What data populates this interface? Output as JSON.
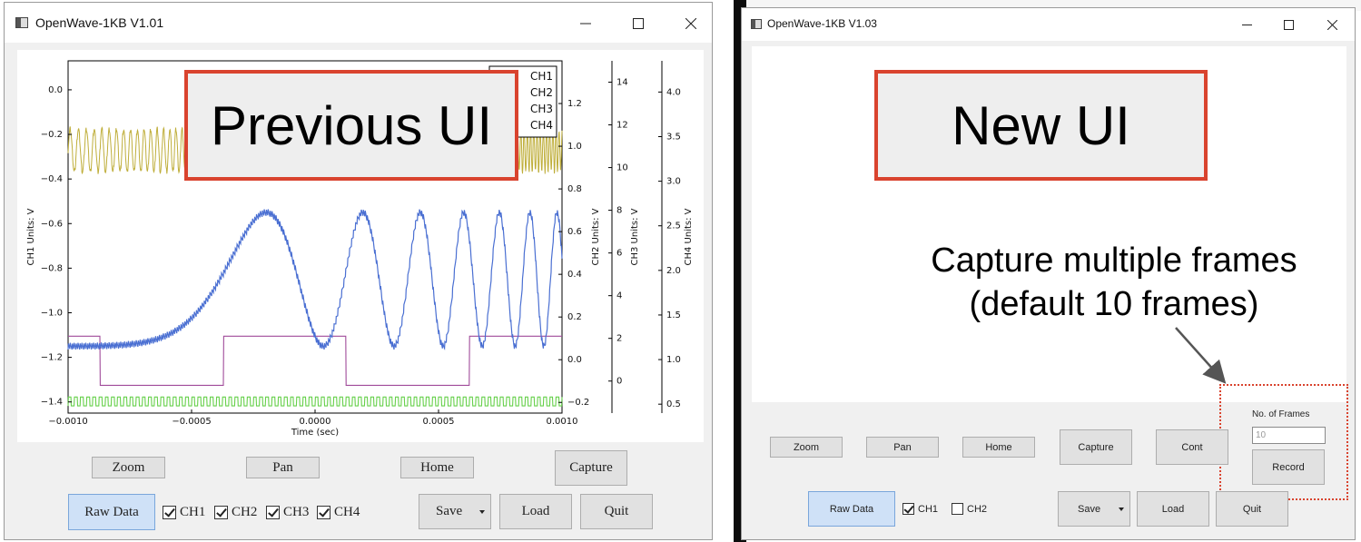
{
  "left_window": {
    "title": "OpenWave-1KB V1.01",
    "callout": "Previous UI",
    "buttons": {
      "zoom": "Zoom",
      "pan": "Pan",
      "home": "Home",
      "capture": "Capture",
      "raw_data": "Raw Data",
      "save": "Save",
      "load": "Load",
      "quit": "Quit"
    },
    "channels": [
      {
        "label": "CH1",
        "checked": true
      },
      {
        "label": "CH2",
        "checked": true
      },
      {
        "label": "CH3",
        "checked": true
      },
      {
        "label": "CH4",
        "checked": true
      }
    ]
  },
  "right_window": {
    "title": "OpenWave-1KB V1.03",
    "callout": "New UI",
    "annotation_line1": "Capture multiple frames",
    "annotation_line2": "(default 10 frames)",
    "buttons": {
      "zoom": "Zoom",
      "pan": "Pan",
      "home": "Home",
      "capture": "Capture",
      "cont": "Cont",
      "record": "Record",
      "raw_data": "Raw Data",
      "save": "Save",
      "load": "Load",
      "quit": "Quit"
    },
    "frames_label": "No. of Frames",
    "frames_placeholder": "10",
    "channels": [
      {
        "label": "CH1",
        "checked": true
      },
      {
        "label": "CH2",
        "checked": false
      }
    ]
  },
  "chart_data": {
    "type": "line",
    "xlabel": "Time (sec)",
    "x_ticks": [
      "−0.0010",
      "−0.0005",
      "0.0000",
      "0.0005",
      "0.0010"
    ],
    "xlim": [
      -0.001,
      0.001
    ],
    "legend": [
      "CH1",
      "CH2",
      "CH3",
      "CH4"
    ],
    "legend_position": "top-right",
    "axes": [
      {
        "name": "CH1 Units: V",
        "side": "left",
        "ticks": [
          "0.0",
          "−0.2",
          "−0.4",
          "−0.6",
          "−0.8",
          "−1.0",
          "−1.2",
          "−1.4"
        ],
        "ylim": [
          -1.45,
          0.13
        ]
      },
      {
        "name": "CH2 Units: V",
        "side": "right",
        "ticks": [
          "1.2",
          "1.0",
          "0.8",
          "0.6",
          "0.4",
          "0.2",
          "0.0",
          "−0.2"
        ],
        "ylim": [
          -0.25,
          1.4
        ]
      },
      {
        "name": "CH3 Units: V",
        "side": "right",
        "ticks": [
          "14",
          "12",
          "10",
          "8",
          "6",
          "4",
          "2",
          "0"
        ],
        "ylim": [
          -1.5,
          15
        ]
      },
      {
        "name": "CH4 Units: V",
        "side": "right",
        "ticks": [
          "4.0",
          "3.5",
          "3.0",
          "2.5",
          "2.0",
          "1.5",
          "1.0",
          "0.5"
        ],
        "ylim": [
          0.4,
          4.35
        ]
      }
    ],
    "series": [
      {
        "name": "CH1",
        "color": "#4a6fd2",
        "shape": "chirp sine, min ≈ −1.15 V, max ≈ −0.52 V, frequency rising with time"
      },
      {
        "name": "CH2",
        "color": "#bfae3a",
        "shape": "high-frequency oscillation between ≈ 0.85 and 1.1 V"
      },
      {
        "name": "CH3",
        "color": "#a04b9a",
        "shape": "square wave with low period, levels ≈ 0.1 V and ≈ 0.75 V"
      },
      {
        "name": "CH4",
        "color": "#66d04a",
        "shape": "fast square wave between ≈ 0.5 and 0.6 V"
      }
    ],
    "colors": {
      "CH1": "#4a6fd2",
      "CH2": "#bfae3a",
      "CH3": "#a04b9a",
      "CH4": "#66d04a"
    }
  },
  "colors": {
    "callout_border": "#d9432e",
    "active_button": "#cfe1f7"
  }
}
